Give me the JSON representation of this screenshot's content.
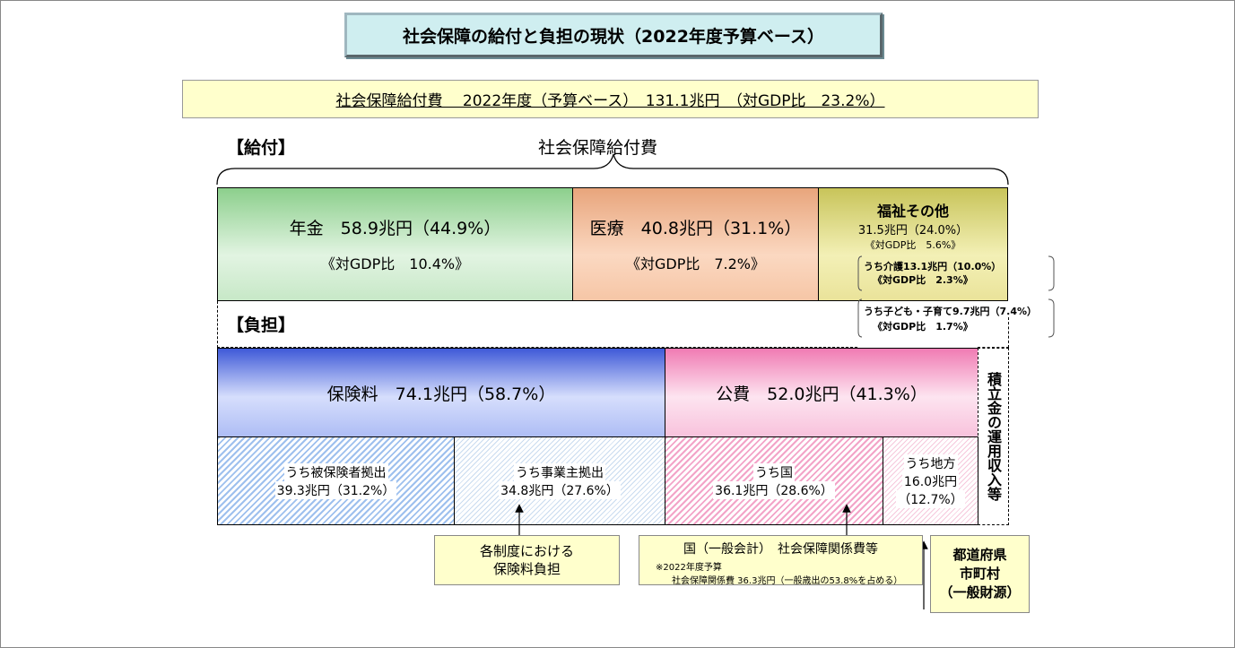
{
  "title": "社会保障の給付と負担の現状（2022年度予算ベース）",
  "subtitle": "社会保障給付費　 2022年度（予算ベース）　131.1兆円　（対GDP比　23.2%）",
  "benefits": {
    "section_label": "【給付】",
    "brace_label": "社会保障給付費",
    "pension": {
      "line1": "年金　58.9兆円（44.9%）",
      "line2": "《対GDP比　10.4%》"
    },
    "medical": {
      "line1": "医療　40.8兆円（31.1%）",
      "line2": "《対GDP比　7.2%》"
    },
    "welfare": {
      "title": "福祉その他",
      "line1": "31.5兆円（24.0%）",
      "line2": "《対GDP比　5.6%》",
      "care_line1": "うち介護13.1兆円（10.0%）",
      "care_line2": "《対GDP比　2.3%》",
      "child_line1": "うち子ども・子育て9.7兆円（7.4%）",
      "child_line2": "《対GDP比　1.7%》"
    }
  },
  "burden": {
    "section_label": "【負担】",
    "insurance": "保険料　74.1兆円（58.7%）",
    "public": "公費　52.0兆円（41.3%）",
    "reserve": "積立金の運用収入等",
    "insured": {
      "line1": "うち被保険者拠出",
      "line2": "39.3兆円（31.2%）"
    },
    "employer": {
      "line1": "うち事業主拠出",
      "line2": "34.8兆円（27.6%）"
    },
    "national": {
      "line1": "うち国",
      "line2": "36.1兆円（28.6%）"
    },
    "local": {
      "line1": "うち地方",
      "line2": "16.0兆円",
      "line3": "（12.7%）"
    }
  },
  "notes": {
    "premium": {
      "line1": "各制度における",
      "line2": "保険料負担"
    },
    "national": {
      "line1": "国（一般会計）　社会保障関係費等",
      "line2": "※2022年度予算",
      "line3": "社会保障関係費 36.3兆円（一般歳出の53.8%を占める）"
    },
    "local": {
      "line1": "都道府県",
      "line2": "市町村",
      "line3": "（一般財源）"
    }
  }
}
